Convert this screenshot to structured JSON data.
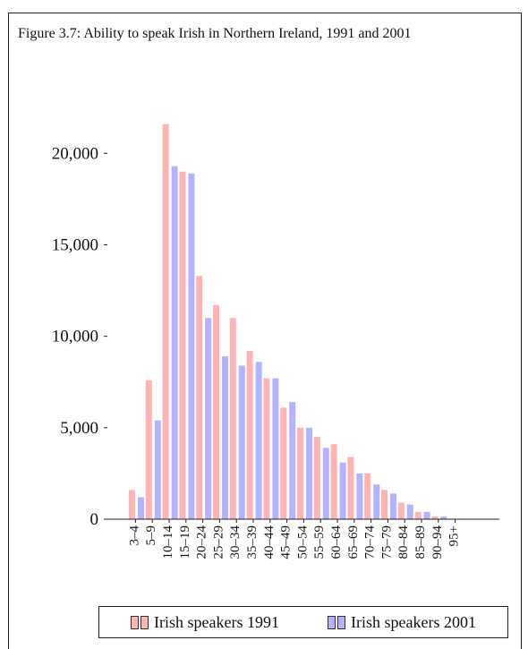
{
  "caption": {
    "label": "Figure 3.7:",
    "text": "Ability to speak Irish in Northern Ireland, 1991 and 2001"
  },
  "colors": {
    "series1991": "#ffb3b3",
    "series2001": "#b3b3ff",
    "axis": "#222222"
  },
  "chart_data": {
    "type": "bar",
    "title": "",
    "xlabel": "",
    "ylabel": "",
    "ylim": [
      0,
      23000
    ],
    "yticks": [
      0,
      5000,
      10000,
      15000,
      20000
    ],
    "ytick_labels": [
      "0",
      "5,000",
      "10,000",
      "15,000",
      "20,000"
    ],
    "categories": [
      "3–4",
      "5–9",
      "10–14",
      "15–19",
      "20–24",
      "25–29",
      "30–34",
      "35–39",
      "40–44",
      "45–49",
      "50–54",
      "55–59",
      "60–64",
      "65–69",
      "70–74",
      "75–79",
      "80–84",
      "85–89",
      "90–94",
      "95+"
    ],
    "series": [
      {
        "name": "Irish speakers 1991",
        "values": [
          1600,
          7600,
          21600,
          19000,
          13300,
          11700,
          11000,
          9200,
          7700,
          6100,
          5000,
          4500,
          4100,
          3400,
          2500,
          1600,
          900,
          400,
          150,
          30
        ]
      },
      {
        "name": "Irish speakers 2001",
        "values": [
          1200,
          5400,
          19300,
          18900,
          11000,
          8900,
          8400,
          8600,
          7700,
          6400,
          5000,
          3900,
          3100,
          2500,
          1900,
          1400,
          800,
          400,
          150,
          30
        ]
      }
    ],
    "legend_position": "bottom",
    "grid": false
  }
}
